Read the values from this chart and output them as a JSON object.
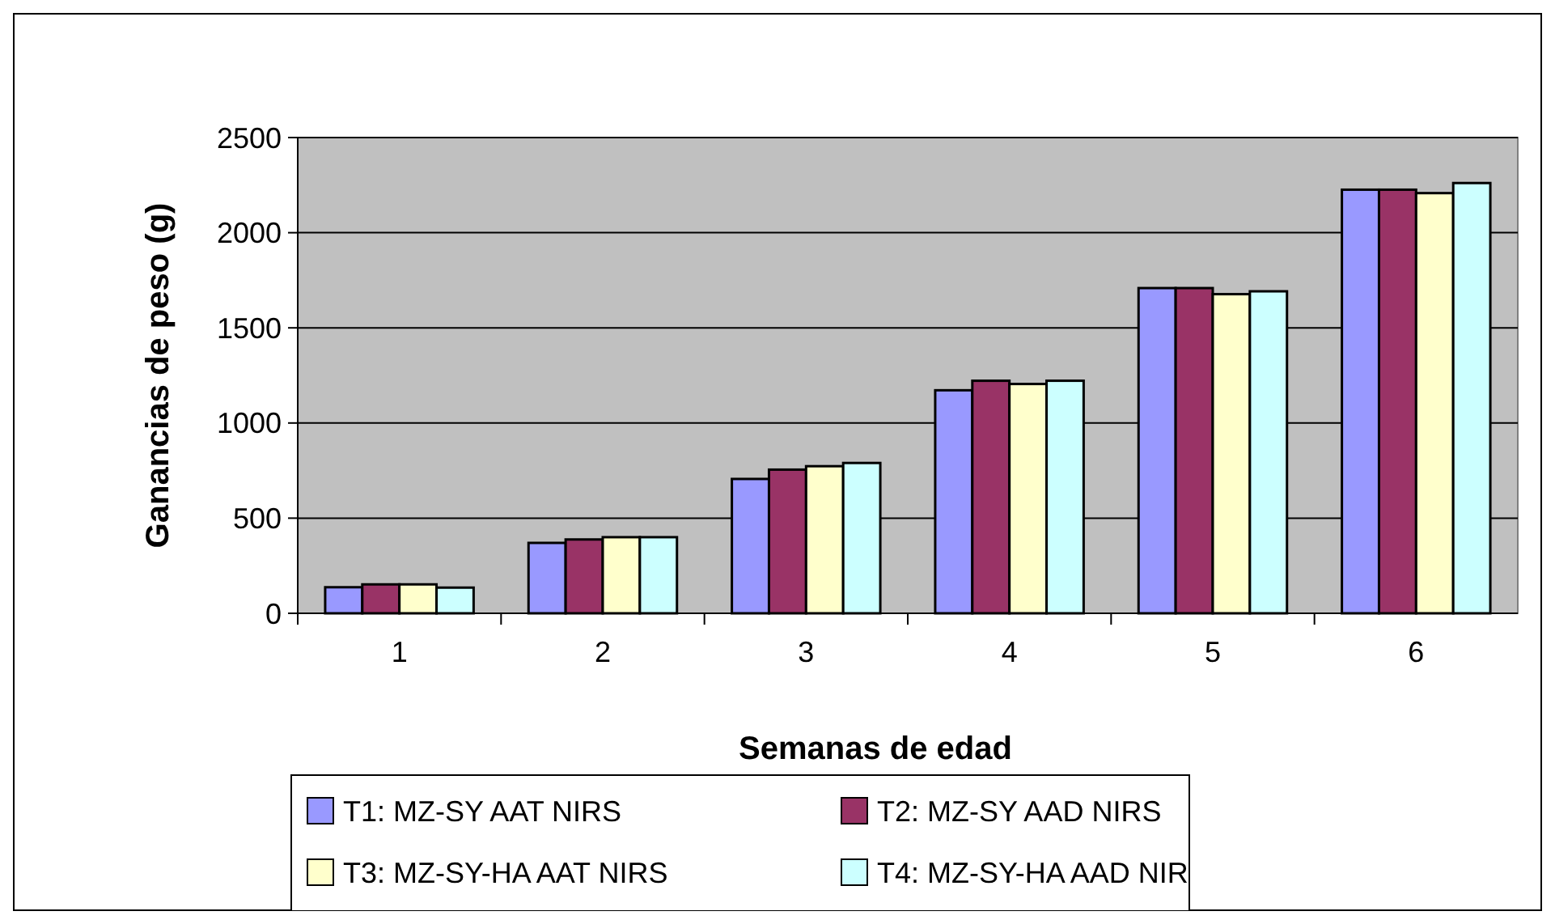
{
  "chart_data": {
    "type": "bar",
    "xlabel": "Semanas de edad",
    "ylabel": "Ganancias de peso (g)",
    "categories": [
      "1",
      "2",
      "3",
      "4",
      "5",
      "6"
    ],
    "series": [
      {
        "name": "T1:  MZ-SY  AAT NIRS",
        "color": "#9999ff",
        "values": [
          137,
          370,
          706,
          1172,
          1709,
          2226
        ]
      },
      {
        "name": "T2:  MZ-SY  AAD NIRS",
        "color": "#993366",
        "values": [
          152,
          388,
          755,
          1222,
          1709,
          2226
        ]
      },
      {
        "name": "T3:  MZ-SY-HA  AAT NIRS",
        "color": "#ffffcc",
        "values": [
          152,
          400,
          773,
          1205,
          1677,
          2208
        ]
      },
      {
        "name": "T4:  MZ-SY-HA  AAD NIR",
        "color": "#ccffff",
        "values": [
          135,
          400,
          790,
          1222,
          1692,
          2261
        ]
      }
    ],
    "ylim": [
      0,
      2500
    ],
    "yticks": [
      0,
      500,
      1000,
      1500,
      2000,
      2500
    ],
    "grid": "y",
    "legend": "bottom"
  }
}
